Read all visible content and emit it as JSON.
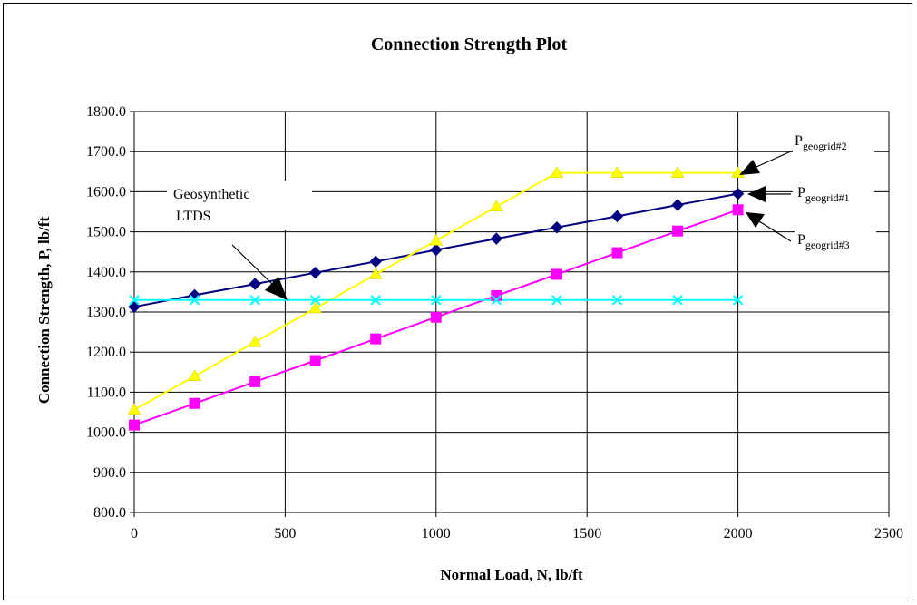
{
  "chart_data": {
    "type": "line",
    "title": "Connection Strength Plot",
    "xlabel": "Normal Load, N, lb/ft",
    "ylabel": "Connection Strength, P, lb/ft",
    "xlim": [
      0,
      2500
    ],
    "ylim": [
      800,
      1800
    ],
    "x_ticks": [
      0,
      500,
      1000,
      1500,
      2000,
      2500
    ],
    "x_tick_labels": [
      "0",
      "500",
      "1000",
      "1500",
      "2000",
      "2500"
    ],
    "y_ticks": [
      800,
      900,
      1000,
      1100,
      1200,
      1300,
      1400,
      1500,
      1600,
      1700,
      1800
    ],
    "y_tick_labels": [
      "800.0",
      "900.0",
      "1000.0",
      "1100.0",
      "1200.0",
      "1300.0",
      "1400.0",
      "1500.0",
      "1600.0",
      "1700.0",
      "1800.0"
    ],
    "grid": true,
    "x": [
      0,
      200,
      400,
      600,
      800,
      1000,
      1200,
      1400,
      1600,
      1800,
      2000
    ],
    "series": [
      {
        "key": "geogrid1",
        "color": "#000080",
        "marker": "diamond",
        "values": [
          1313,
          1342,
          1370,
          1398,
          1426,
          1455,
          1483,
          1511,
          1539,
          1567,
          1595
        ]
      },
      {
        "key": "geogrid2",
        "color": "#ffff00",
        "marker": "triangle",
        "values": [
          1056,
          1140,
          1225,
          1309,
          1394,
          1478,
          1563,
          1647,
          1647,
          1647,
          1647
        ]
      },
      {
        "key": "geogrid3",
        "color": "#ff00ff",
        "marker": "square",
        "values": [
          1018,
          1072,
          1126,
          1179,
          1233,
          1287,
          1341,
          1394,
          1448,
          1502,
          1555
        ]
      },
      {
        "key": "ltds",
        "color": "#00ffff",
        "marker": "x",
        "values": [
          1330,
          1330,
          1330,
          1330,
          1330,
          1330,
          1330,
          1330,
          1330,
          1330,
          1330
        ]
      }
    ],
    "annotations": {
      "ltds_line1": "Geosynthetic",
      "ltds_line2": "LTDS",
      "p_main": "P",
      "geogrid1_sub": "geogrid#1",
      "geogrid2_sub": "geogrid#2",
      "geogrid3_sub": "geogrid#3"
    }
  }
}
